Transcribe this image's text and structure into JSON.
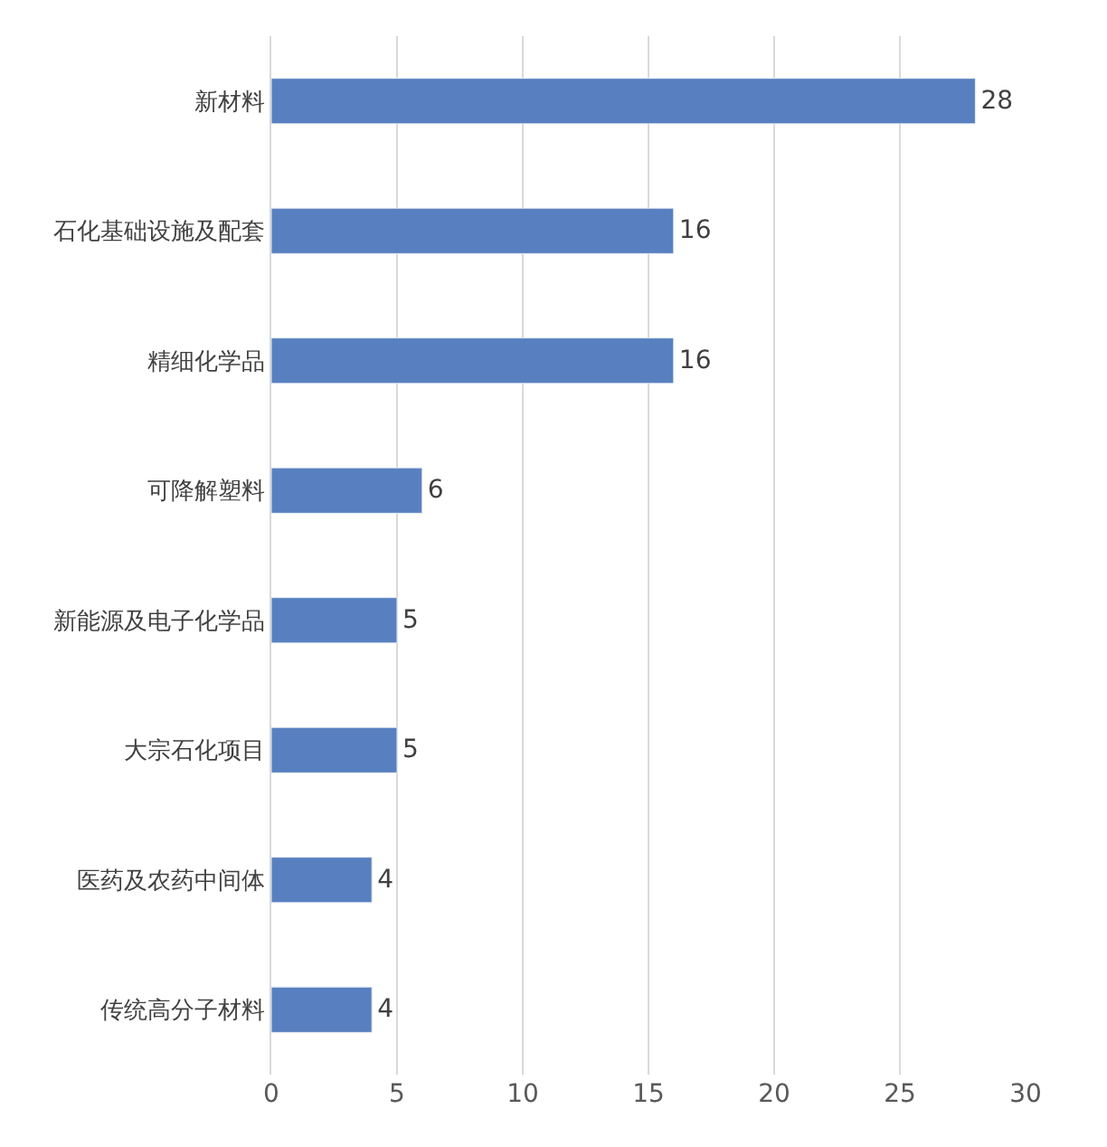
{
  "chart_data": {
    "type": "bar",
    "orientation": "horizontal",
    "categories": [
      "新材料",
      "石化基础设施及配套",
      "精细化学品",
      "可降解塑料",
      "新能源及电子化学品",
      "大宗石化项目",
      "医药及农药中间体",
      "传统高分子材料"
    ],
    "values": [
      28,
      16,
      16,
      6,
      5,
      5,
      4,
      4
    ],
    "color": "#5880c0",
    "xlim": [
      0,
      30
    ],
    "xticks": [
      0,
      5,
      10,
      15,
      20,
      25,
      30
    ],
    "grid": "x",
    "data_labels": true,
    "legend": false
  }
}
